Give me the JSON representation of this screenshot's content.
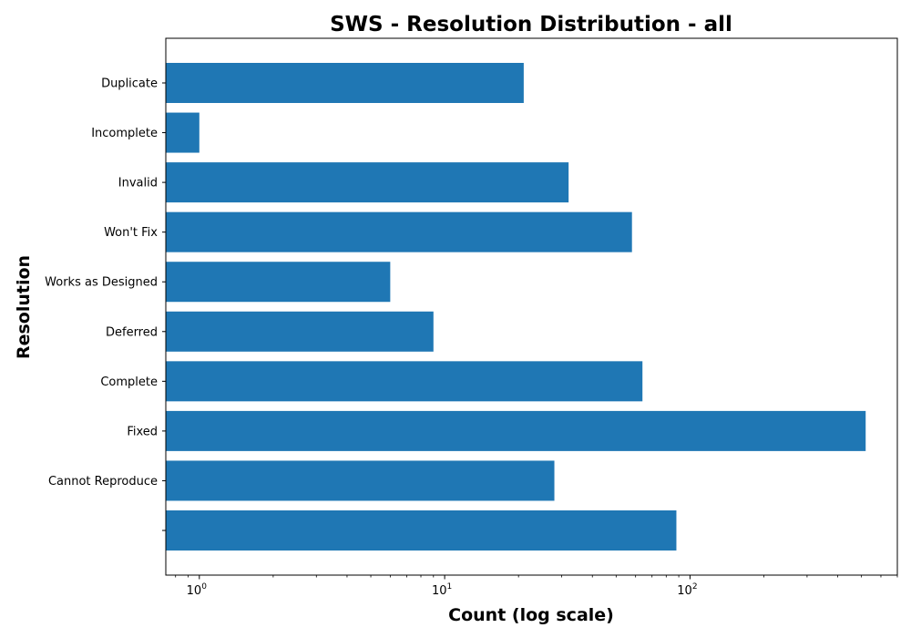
{
  "chart_data": {
    "type": "bar",
    "orientation": "horizontal",
    "title": "SWS - Resolution Distribution - all",
    "xlabel": "Count (log scale)",
    "ylabel": "Resolution",
    "xscale": "log",
    "xlim": [
      0.73,
      700
    ],
    "xticks": [
      {
        "value": 1,
        "base": "10",
        "exp": "0"
      },
      {
        "value": 10,
        "base": "10",
        "exp": "1"
      },
      {
        "value": 100,
        "base": "10",
        "exp": "2"
      }
    ],
    "categories": [
      "Duplicate",
      "Incomplete",
      "Invalid",
      "Won't Fix",
      "Works as Designed",
      "Deferred",
      "Complete",
      "Fixed",
      "Cannot Reproduce",
      ""
    ],
    "values": [
      21,
      1,
      32,
      58,
      6,
      9,
      64,
      520,
      28,
      88
    ],
    "bar_color": "#1f77b4",
    "grid": false,
    "legend": "none"
  }
}
